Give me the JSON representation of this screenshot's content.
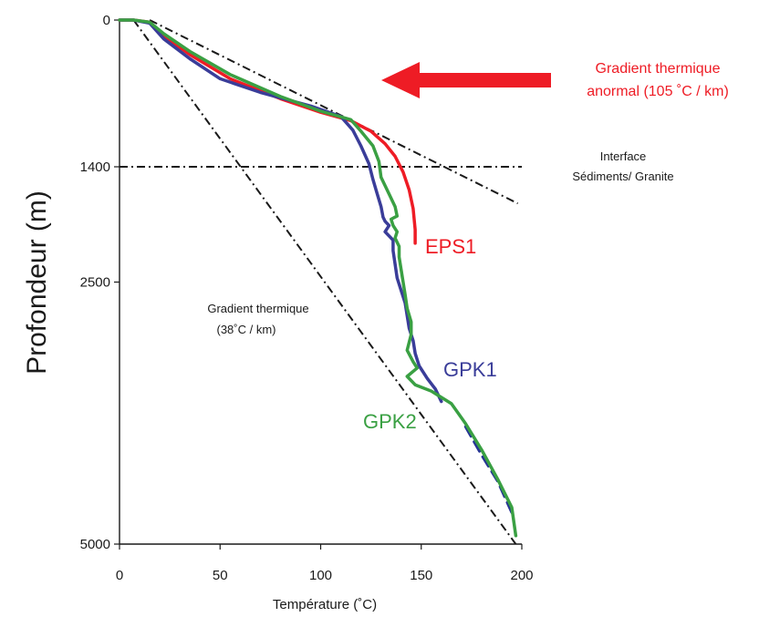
{
  "chart_data": {
    "type": "line",
    "xlabel": "Température (˚C)",
    "ylabel": "Profondeur (m)",
    "xlim": [
      0,
      200
    ],
    "ylim": [
      0,
      5000
    ],
    "y_inverted": true,
    "x_ticks": [
      "0",
      "50",
      "100",
      "150",
      "200"
    ],
    "y_ticks": [
      "0",
      "1400",
      "2500",
      "5000"
    ],
    "grid": false,
    "series": [
      {
        "name": "EPS1",
        "color": "#ee1c25",
        "x": [
          0,
          7,
          15,
          22,
          35,
          55,
          80,
          100,
          115,
          125,
          132,
          137,
          141,
          144,
          146,
          147,
          147
        ],
        "y": [
          0,
          0,
          20,
          150,
          330,
          560,
          750,
          880,
          960,
          1060,
          1180,
          1300,
          1450,
          1620,
          1800,
          2000,
          2130
        ]
      },
      {
        "name": "GPK1",
        "color": "#3a3d99",
        "x": [
          0,
          7,
          15,
          22,
          35,
          50,
          70,
          95,
          110,
          116,
          120,
          124,
          126,
          128,
          130,
          131,
          132,
          134,
          132,
          136,
          136,
          137,
          138,
          140,
          142,
          143,
          144,
          146,
          147,
          149,
          153,
          157,
          160
        ],
        "y": [
          0,
          0,
          30,
          180,
          370,
          560,
          690,
          820,
          920,
          1050,
          1200,
          1370,
          1520,
          1650,
          1780,
          1880,
          1920,
          1960,
          2020,
          2100,
          2200,
          2330,
          2460,
          2580,
          2700,
          2820,
          2940,
          3060,
          3180,
          3300,
          3420,
          3520,
          3640
        ]
      },
      {
        "name": "GPK2",
        "color": "#3aa043",
        "x": [
          0,
          7,
          15,
          22,
          35,
          55,
          80,
          100,
          115,
          120,
          126,
          129,
          130,
          134,
          137,
          138,
          135,
          136,
          138,
          137,
          139,
          139,
          140,
          141,
          142,
          143,
          145,
          145,
          143,
          146,
          148,
          143,
          147,
          155,
          165,
          172,
          180,
          188,
          195,
          197
        ],
        "y": [
          0,
          0,
          20,
          130,
          300,
          520,
          730,
          870,
          950,
          1060,
          1200,
          1350,
          1500,
          1660,
          1780,
          1870,
          1900,
          1960,
          2020,
          2080,
          2160,
          2260,
          2380,
          2500,
          2620,
          2750,
          2880,
          3000,
          3150,
          3260,
          3320,
          3400,
          3480,
          3540,
          3660,
          3850,
          4100,
          4380,
          4650,
          4920
        ]
      },
      {
        "name": "",
        "color": "#253494",
        "dash": "dashed",
        "x": [
          172,
          180,
          188,
          195
        ],
        "y": [
          3880,
          4150,
          4400,
          4700
        ]
      }
    ],
    "reference_lines": [
      {
        "label": "Gradient thermique\n(38˚C / km)",
        "style": "dash-dot",
        "x": [
          7,
          197
        ],
        "y": [
          0,
          5000
        ]
      },
      {
        "label": "Gradient thermique\nanormal (105 ˚C / km)",
        "style": "dash-dot",
        "x": [
          15,
          198
        ],
        "y": [
          0,
          1750
        ]
      },
      {
        "label": "Interface\nSédiments/ Granite",
        "style": "dash-dot",
        "orientation": "horizontal",
        "y": 1400,
        "x": [
          0,
          200
        ]
      }
    ],
    "annotations": {
      "gradient_38": [
        "Gradient thermique",
        "(38˚C / km)"
      ],
      "gradient_105": [
        "Gradient thermique",
        "anormal (105 ˚C / km)"
      ],
      "interface": [
        "Interface",
        "Sédiments/ Granite"
      ],
      "eps1": "EPS1",
      "gpk1": "GPK1",
      "gpk2": "GPK2"
    },
    "colors": {
      "eps1": "#ee1c25",
      "gpk1": "#3a3d99",
      "gpk2": "#3aa043",
      "arrow": "#ee1c25",
      "axis": "#1a1a1a"
    }
  }
}
